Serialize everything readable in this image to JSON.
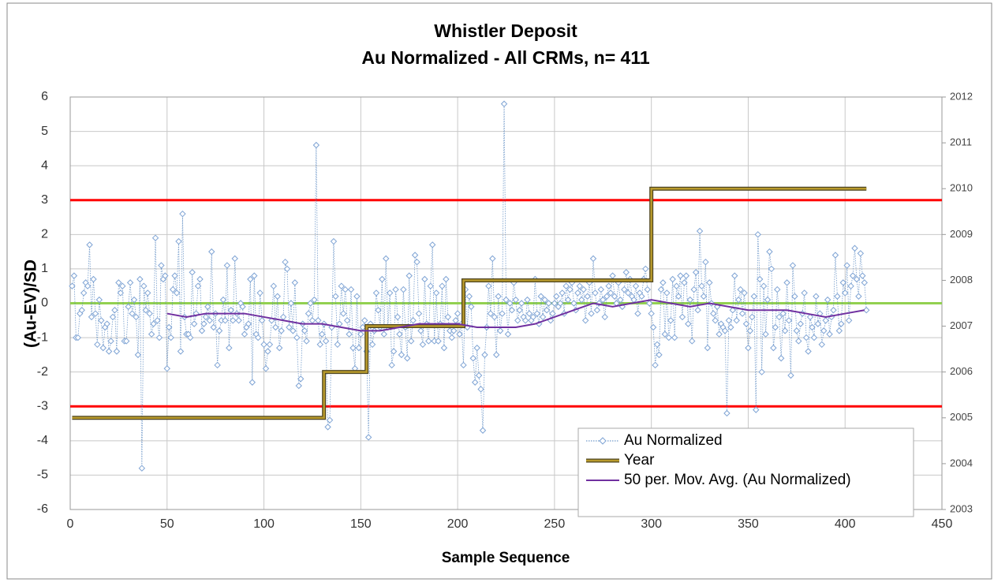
{
  "chart_data": {
    "type": "line",
    "title": "Whistler Deposit",
    "subtitle": "Au Normalized - All CRMs, n= 411",
    "x_label": "Sample Sequence",
    "y_label": "(Au-EV)/SD",
    "xlim": [
      0,
      450
    ],
    "xticks": [
      0,
      50,
      100,
      150,
      200,
      250,
      300,
      350,
      400,
      450
    ],
    "ylim": [
      -6,
      6
    ],
    "yticks": [
      -6,
      -5,
      -4,
      -3,
      -2,
      -1,
      0,
      1,
      2,
      3,
      4,
      5,
      6
    ],
    "y2lim": [
      2003,
      2012
    ],
    "y2ticks": [
      2003,
      2004,
      2005,
      2006,
      2007,
      2008,
      2009,
      2010,
      2011,
      2012
    ],
    "grid": true,
    "legend": "lower right",
    "reference_lines": [
      {
        "value": 3,
        "color": "#ff0000"
      },
      {
        "value": -3,
        "color": "#ff0000"
      },
      {
        "value": 0,
        "color": "#92d050"
      }
    ],
    "series": [
      {
        "name": "Au Normalized",
        "color": "#4f81bd",
        "style": "markers",
        "x": [
          1,
          2,
          3,
          4,
          5,
          6,
          7,
          8,
          9,
          10,
          11,
          12,
          13,
          14,
          15,
          16,
          17,
          18,
          19,
          20,
          21,
          22,
          23,
          24,
          25,
          26,
          27,
          28,
          29,
          30,
          31,
          32,
          33,
          34,
          35,
          36,
          37,
          38,
          39,
          40,
          41,
          42,
          43,
          44,
          45,
          46,
          47,
          48,
          49,
          50,
          51,
          52,
          53,
          54,
          55,
          56,
          57,
          58,
          59,
          60,
          61,
          62,
          63,
          64,
          65,
          66,
          67,
          68,
          69,
          70,
          71,
          72,
          73,
          74,
          75,
          76,
          77,
          78,
          79,
          80,
          81,
          82,
          83,
          84,
          85,
          86,
          87,
          88,
          89,
          90,
          91,
          92,
          93,
          94,
          95,
          96,
          97,
          98,
          99,
          100,
          101,
          102,
          103,
          104,
          105,
          106,
          107,
          108,
          109,
          110,
          111,
          112,
          113,
          114,
          115,
          116,
          117,
          118,
          119,
          120,
          121,
          122,
          123,
          124,
          125,
          126,
          127,
          128,
          129,
          130,
          131,
          132,
          133,
          134,
          135,
          136,
          137,
          138,
          139,
          140,
          141,
          142,
          143,
          144,
          145,
          146,
          147,
          148,
          149,
          150,
          151,
          152,
          153,
          154,
          155,
          156,
          157,
          158,
          159,
          160,
          161,
          162,
          163,
          164,
          165,
          166,
          167,
          168,
          169,
          170,
          171,
          172,
          173,
          174,
          175,
          176,
          177,
          178,
          179,
          180,
          181,
          182,
          183,
          184,
          185,
          186,
          187,
          188,
          189,
          190,
          191,
          192,
          193,
          194,
          195,
          196,
          197,
          198,
          199,
          200,
          201,
          202,
          203,
          204,
          205,
          206,
          207,
          208,
          209,
          210,
          211,
          212,
          213,
          214,
          215,
          216,
          217,
          218,
          219,
          220,
          221,
          222,
          223,
          224,
          225,
          226,
          227,
          228,
          229,
          230,
          231,
          232,
          233,
          234,
          235,
          236,
          237,
          238,
          239,
          240,
          241,
          242,
          243,
          244,
          245,
          246,
          247,
          248,
          249,
          250,
          251,
          252,
          253,
          254,
          255,
          256,
          257,
          258,
          259,
          260,
          261,
          262,
          263,
          264,
          265,
          266,
          267,
          268,
          269,
          270,
          271,
          272,
          273,
          274,
          275,
          276,
          277,
          278,
          279,
          280,
          281,
          282,
          283,
          284,
          285,
          286,
          287,
          288,
          289,
          290,
          291,
          292,
          293,
          294,
          295,
          296,
          297,
          298,
          299,
          300,
          301,
          302,
          303,
          304,
          305,
          306,
          307,
          308,
          309,
          310,
          311,
          312,
          313,
          314,
          315,
          316,
          317,
          318,
          319,
          320,
          321,
          322,
          323,
          324,
          325,
          326,
          327,
          328,
          329,
          330,
          331,
          332,
          333,
          334,
          335,
          336,
          337,
          338,
          339,
          340,
          341,
          342,
          343,
          344,
          345,
          346,
          347,
          348,
          349,
          350,
          351,
          352,
          353,
          354,
          355,
          356,
          357,
          358,
          359,
          360,
          361,
          362,
          363,
          364,
          365,
          366,
          367,
          368,
          369,
          370,
          371,
          372,
          373,
          374,
          375,
          376,
          377,
          378,
          379,
          380,
          381,
          382,
          383,
          384,
          385,
          386,
          387,
          388,
          389,
          390,
          391,
          392,
          393,
          394,
          395,
          396,
          397,
          398,
          399,
          400,
          401,
          402,
          403,
          404,
          405,
          406,
          407,
          408,
          409,
          410,
          411
        ],
        "values": [
          0.5,
          0.8,
          -1.0,
          -1.0,
          -0.3,
          -0.2,
          0.3,
          0.6,
          0.5,
          1.7,
          -0.4,
          0.7,
          -0.3,
          -1.2,
          0.1,
          -0.5,
          -1.3,
          -0.7,
          -0.6,
          -1.4,
          -1.1,
          -0.4,
          -0.2,
          -1.4,
          0.6,
          0.3,
          0.5,
          -1.1,
          -1.1,
          -0.1,
          0.6,
          -0.3,
          0.1,
          -0.4,
          -1.5,
          0.7,
          -4.8,
          0.5,
          -0.2,
          0.3,
          -0.3,
          -0.9,
          -0.6,
          1.9,
          -0.5,
          -1.0,
          1.1,
          0.7,
          0.8,
          -1.9,
          -0.7,
          -1.0,
          0.4,
          0.8,
          0.3,
          1.8,
          -1.4,
          2.6,
          -0.4,
          -0.9,
          -0.9,
          -1.0,
          0.9,
          -0.6,
          -0.3,
          0.5,
          0.7,
          -0.8,
          -0.6,
          -0.4,
          -0.1,
          -0.5,
          1.5,
          -0.7,
          -0.3,
          -1.8,
          -0.8,
          -0.5,
          0.1,
          -0.5,
          1.1,
          -1.3,
          -0.2,
          -0.5,
          1.3,
          -0.3,
          -0.5,
          0.0,
          -0.1,
          -0.9,
          -0.7,
          -0.6,
          0.7,
          -2.3,
          0.8,
          -0.9,
          -1.0,
          0.3,
          -0.5,
          -1.2,
          -1.9,
          -1.4,
          -1.2,
          -0.5,
          0.5,
          -0.7,
          0.2,
          -1.3,
          -0.8,
          -0.4,
          1.2,
          1.0,
          -0.7,
          0.0,
          -0.8,
          0.6,
          -1.0,
          -2.4,
          -2.2,
          -0.6,
          -0.8,
          -1.1,
          -0.3,
          0.0,
          -0.5,
          0.1,
          4.6,
          -0.5,
          -1.2,
          -0.9,
          -0.6,
          -1.1,
          -3.6,
          -3.4,
          -0.7,
          1.8,
          0.2,
          -1.2,
          -0.6,
          0.5,
          -0.3,
          0.4,
          -0.5,
          -0.9,
          0.4,
          -1.3,
          -1.9,
          0.2,
          -1.3,
          -0.9,
          -0.7,
          -0.5,
          -1.4,
          -3.9,
          -0.6,
          -1.2,
          -0.8,
          0.3,
          -0.2,
          -0.7,
          0.7,
          -0.9,
          1.3,
          -0.7,
          0.3,
          -1.8,
          -1.4,
          0.4,
          -0.4,
          -0.9,
          -1.5,
          0.4,
          -0.7,
          -1.6,
          0.8,
          -1.1,
          -0.5,
          1.4,
          1.2,
          -0.3,
          -0.8,
          -1.2,
          0.7,
          -0.6,
          -1.1,
          0.5,
          1.7,
          -1.1,
          0.3,
          -1.1,
          -0.6,
          0.5,
          -1.3,
          0.7,
          -0.4,
          -0.8,
          -1.0,
          -0.8,
          -0.5,
          -0.3,
          -0.9,
          -0.6,
          -1.8,
          0.4,
          -0.7,
          0.2,
          -0.1,
          -1.6,
          -2.3,
          -1.3,
          -2.1,
          -2.5,
          -3.7,
          -1.5,
          -0.7,
          0.5,
          -0.3,
          1.3,
          -0.4,
          -1.5,
          0.2,
          -0.8,
          -0.3,
          5.8,
          0.1,
          -0.9,
          0.0,
          -0.2,
          0.6,
          0.1,
          -0.5,
          -0.2,
          0.0,
          -0.4,
          -0.5,
          0.1,
          -0.3,
          -0.5,
          -0.4,
          0.7,
          -0.3,
          -0.6,
          0.2,
          -0.4,
          0.1,
          -0.2,
          0.0,
          -0.5,
          -0.3,
          0.0,
          0.2,
          -0.1,
          0.0,
          0.3,
          -0.3,
          0.5,
          0.1,
          0.4,
          0.6,
          0.0,
          -0.2,
          0.3,
          0.5,
          0.1,
          0.4,
          -0.5,
          0.2,
          0.6,
          -0.3,
          1.3,
          0.3,
          -0.2,
          0.0,
          0.4,
          0.1,
          -0.4,
          0.2,
          0.5,
          0.3,
          0.8,
          0.2,
          0.0,
          0.6,
          0.1,
          -0.1,
          0.4,
          0.9,
          0.3,
          0.7,
          0.2,
          0.1,
          0.5,
          -0.3,
          0.3,
          0.2,
          0.7,
          1.0,
          0.4,
          0.0,
          -0.3,
          -0.7,
          -1.8,
          -1.2,
          -1.5,
          0.4,
          0.6,
          -0.9,
          0.3,
          -1.0,
          -0.5,
          0.7,
          -1.0,
          0.5,
          0.2,
          0.8,
          -0.4,
          0.6,
          0.8,
          -0.6,
          0.1,
          -1.1,
          0.4,
          0.9,
          -0.2,
          2.1,
          0.5,
          0.2,
          1.2,
          -1.3,
          0.6,
          0.0,
          -0.3,
          -0.5,
          -0.1,
          -0.9,
          -0.6,
          -0.7,
          -0.8,
          -3.2,
          -0.5,
          -0.7,
          -0.2,
          0.8,
          -0.5,
          0.1,
          0.4,
          -0.3,
          0.3,
          -0.6,
          -1.3,
          -0.8,
          -0.4,
          0.2,
          -3.1,
          2.0,
          0.7,
          -2.0,
          0.5,
          -0.9,
          0.1,
          1.5,
          1.0,
          -1.3,
          -0.7,
          0.4,
          -0.4,
          -1.6,
          -0.3,
          -0.8,
          0.6,
          -0.5,
          -2.1,
          1.1,
          0.2,
          -0.8,
          -1.1,
          -0.6,
          -0.3,
          0.3,
          -1.0,
          -1.4,
          -0.4,
          -0.7,
          -1.0,
          0.2,
          -0.6,
          -0.3,
          -1.2,
          -0.8,
          -0.5,
          0.1,
          -0.9,
          -0.4,
          -0.2,
          1.4,
          0.2,
          -0.8,
          -0.6,
          0.6,
          0.3,
          1.1,
          -0.5,
          0.5,
          0.8,
          1.6,
          0.7,
          0.2,
          1.45,
          0.8,
          0.6,
          -0.2
        ]
      },
      {
        "name": "Year",
        "color": "#b89a2c",
        "style": "step",
        "axis": "y2",
        "x": [
          1,
          131,
          131,
          153,
          153,
          203,
          203,
          300,
          300,
          411
        ],
        "values": [
          2005,
          2005,
          2006,
          2006,
          2007,
          2007,
          2008,
          2008,
          2010,
          2010
        ]
      },
      {
        "name": "50 per. Mov. Avg. (Au Normalized)",
        "color": "#7030a0",
        "style": "line",
        "x": [
          50,
          60,
          70,
          80,
          90,
          100,
          110,
          120,
          130,
          140,
          150,
          160,
          170,
          180,
          190,
          200,
          210,
          220,
          230,
          240,
          250,
          260,
          270,
          280,
          290,
          300,
          310,
          320,
          330,
          340,
          350,
          360,
          370,
          380,
          390,
          400,
          410
        ],
        "values": [
          -0.3,
          -0.4,
          -0.3,
          -0.3,
          -0.3,
          -0.4,
          -0.5,
          -0.6,
          -0.6,
          -0.7,
          -0.8,
          -0.8,
          -0.7,
          -0.6,
          -0.6,
          -0.6,
          -0.7,
          -0.7,
          -0.7,
          -0.6,
          -0.4,
          -0.2,
          0.0,
          -0.1,
          0.0,
          0.1,
          0.0,
          -0.1,
          0.0,
          -0.1,
          -0.2,
          -0.2,
          -0.2,
          -0.3,
          -0.4,
          -0.3,
          -0.2
        ]
      }
    ]
  }
}
